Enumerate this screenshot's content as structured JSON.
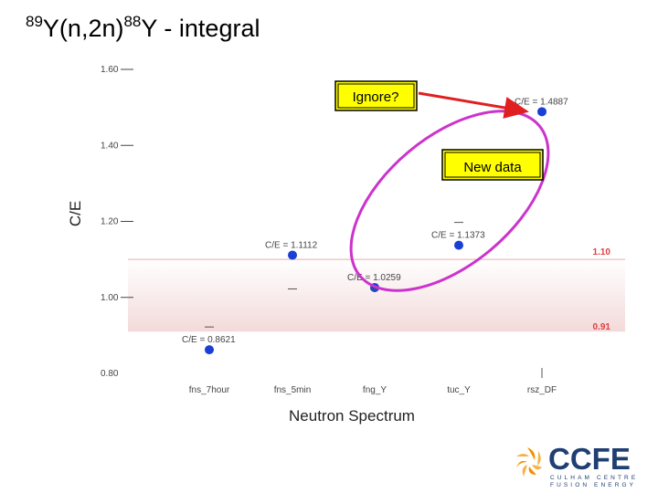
{
  "slide": {
    "title_pre": "89",
    "title_a": "Y(n,2n)",
    "title_sup": "88",
    "title_b": "Y  - integral"
  },
  "chart_data": {
    "type": "scatter",
    "xlabel": "Neutron Spectrum",
    "ylabel": "C/E",
    "ylim": [
      0.8,
      1.6
    ],
    "yticks": [
      "0.80",
      "1.00",
      "1.20",
      "1.40",
      "1.60"
    ],
    "categories": [
      "fns_7hour",
      "fns_5min",
      "fng_Y",
      "tuc_Y",
      "rsz_DF"
    ],
    "points": [
      {
        "category": "fns_7hour",
        "value": 0.8621,
        "label": "C/E = 0.8621"
      },
      {
        "category": "fns_5min",
        "value": 1.1112,
        "label": "C/E = 1.1112"
      },
      {
        "category": "fng_Y",
        "value": 1.0259,
        "label": "C/E = 1.0259"
      },
      {
        "category": "tuc_Y",
        "value": 1.1373,
        "label": "C/E = 1.1373"
      },
      {
        "category": "rsz_DF",
        "value": 1.4887,
        "label": "C/E = 1.4887"
      }
    ],
    "band": {
      "low": 0.91,
      "high": 1.1,
      "low_label": "0.91",
      "high_label": "1.10",
      "color": "#e04040"
    },
    "annotations": {
      "ignore": "Ignore?",
      "new_data": "New data"
    },
    "colors": {
      "point": "#1a3fd6",
      "ellipse": "#cc33cc",
      "arrow": "#e02020",
      "box_fill": "#ffff00"
    }
  },
  "logo": {
    "name": "CCFE",
    "line1": "CULHAM CENTRE",
    "line2": "FUSION ENERGY",
    "color": "#1f3f73",
    "accent": "#f29100"
  }
}
